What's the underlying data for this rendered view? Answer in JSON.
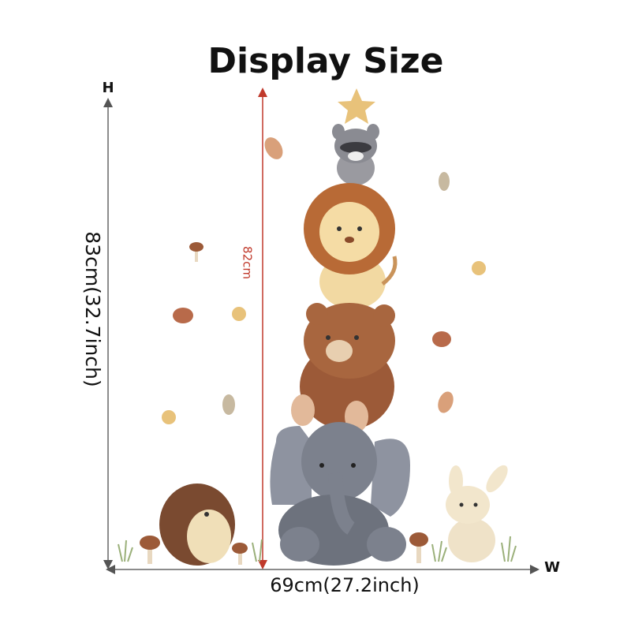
{
  "title": "Display Size",
  "height_axis": {
    "letter": "H",
    "label": "83cm(32.7inch)"
  },
  "inner_height": {
    "label": "82cm"
  },
  "width_axis": {
    "letter": "W",
    "label": "69cm(27.2inch)"
  }
}
